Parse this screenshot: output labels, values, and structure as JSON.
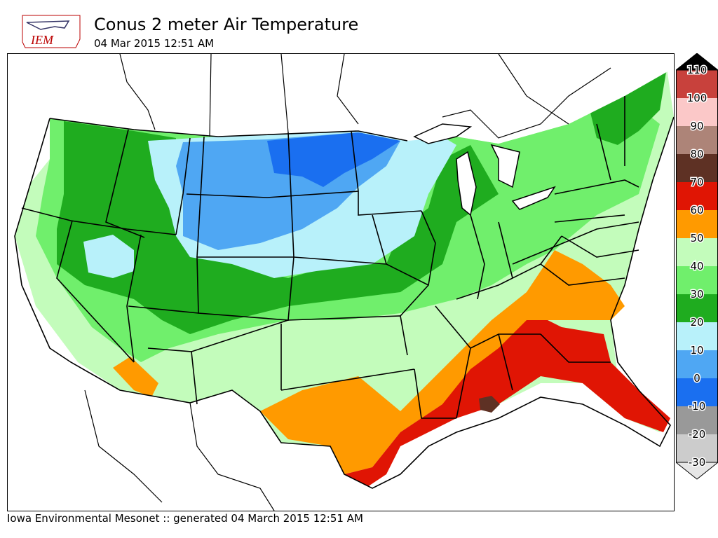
{
  "header": {
    "logo_text": "IEM",
    "title": "Conus 2 meter Air Temperature",
    "timestamp": "04 Mar 2015 12:51 AM"
  },
  "footer": {
    "text": "Iowa Environmental Mesonet :: generated 04 March 2015 12:51 AM"
  },
  "colorbar": {
    "bins": [
      {
        "label": "110",
        "color": "#000000"
      },
      {
        "label": "100",
        "color": "#c8413c"
      },
      {
        "label": "90",
        "color": "#fbc8c8"
      },
      {
        "label": "80",
        "color": "#ad8478"
      },
      {
        "label": "70",
        "color": "#5e3124"
      },
      {
        "label": "60",
        "color": "#e01504"
      },
      {
        "label": "50",
        "color": "#ff9a00"
      },
      {
        "label": "40",
        "color": "#c3fcbb"
      },
      {
        "label": "30",
        "color": "#70ef6c"
      },
      {
        "label": "20",
        "color": "#1fac1f"
      },
      {
        "label": "10",
        "color": "#b8f1fa"
      },
      {
        "label": "0",
        "color": "#4fa7f3"
      },
      {
        "label": "-10",
        "color": "#1a6ff0"
      },
      {
        "label": "-20",
        "color": "#999999"
      },
      {
        "label": "-30",
        "color": "#cccccc"
      }
    ],
    "bottom_color": "#e6e6e6"
  },
  "map": {
    "description_colors": {
      "very_cold": "#1a6ff0",
      "cold": "#4fa7f3",
      "cool": "#b8f1fa",
      "mild": "#1fac1f",
      "warm": "#70ef6c",
      "warmer": "#c3fcbb",
      "hot": "#ff9a00",
      "hotter": "#e01504",
      "hottest": "#5e3124"
    }
  }
}
